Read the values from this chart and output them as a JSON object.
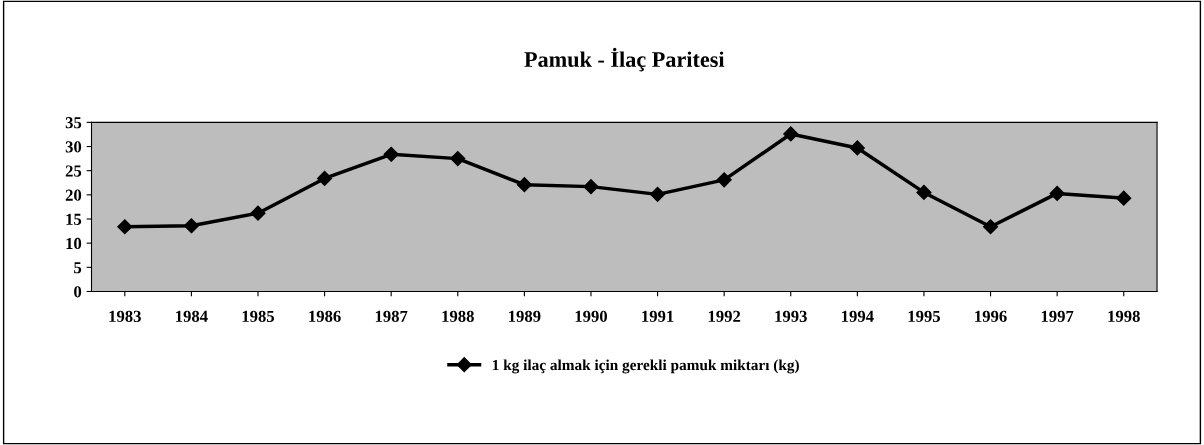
{
  "chart_data": {
    "type": "line",
    "title": "Pamuk - İlaç Paritesi",
    "categories": [
      "1983",
      "1984",
      "1985",
      "1986",
      "1987",
      "1988",
      "1989",
      "1990",
      "1991",
      "1992",
      "1993",
      "1994",
      "1995",
      "1996",
      "1997",
      "1998"
    ],
    "series": [
      {
        "name": "1 kg ilaç almak için gerekli pamuk miktarı (kg)",
        "color": "#000000",
        "values": [
          13.4,
          13.6,
          16.2,
          23.4,
          28.4,
          27.5,
          22.1,
          21.7,
          20.1,
          23.1,
          32.6,
          29.7,
          20.5,
          13.4,
          20.3,
          19.3
        ]
      }
    ],
    "ylim": [
      0,
      35
    ],
    "yticks": [
      0,
      5,
      10,
      15,
      20,
      25,
      30,
      35
    ],
    "marker": "diamond",
    "line_style": "solid",
    "legend": "bottom",
    "grid": false
  }
}
